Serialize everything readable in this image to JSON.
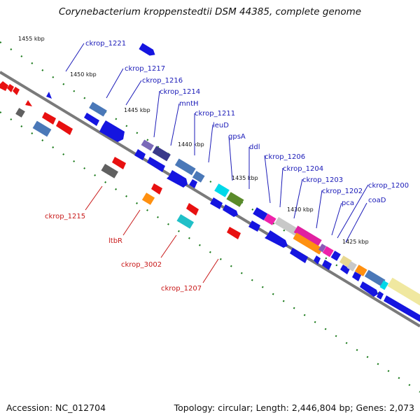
{
  "title": "Corynebacterium kroppenstedtii DSM 44385, complete genome",
  "footer": {
    "accession": "Accession: NC_012704",
    "summary": "Topology: circular; Length: 2,446,804 bp; Genes: 2,073"
  },
  "colors": {
    "forward_cds": "#1515e0",
    "reverse_cds": "#e81010",
    "backbone": "#808080",
    "tick": "#1a7a1a",
    "forward_label": "#1a1ab8",
    "reverse_label": "#c81818"
  },
  "scale_labels": [
    "1455 kbp",
    "1450 kbp",
    "1445 kbp",
    "1440 kbp",
    "1435 kbp",
    "1430 kbp",
    "1425 kbp"
  ],
  "forward_labels": [
    "ckrop_1221",
    "ckrop_1217",
    "ckrop_1216",
    "ckrop_1214",
    "mntH",
    "ckrop_1211",
    "leuD",
    "gpsA",
    "ddl",
    "ckrop_1206",
    "ckrop_1204",
    "ckrop_1203",
    "ckrop_1202",
    "pca",
    "ckrop_1200",
    "coaD"
  ],
  "reverse_labels": [
    "ckrop_1215",
    "ltbR",
    "ckrop_3002",
    "ckrop_1207"
  ]
}
